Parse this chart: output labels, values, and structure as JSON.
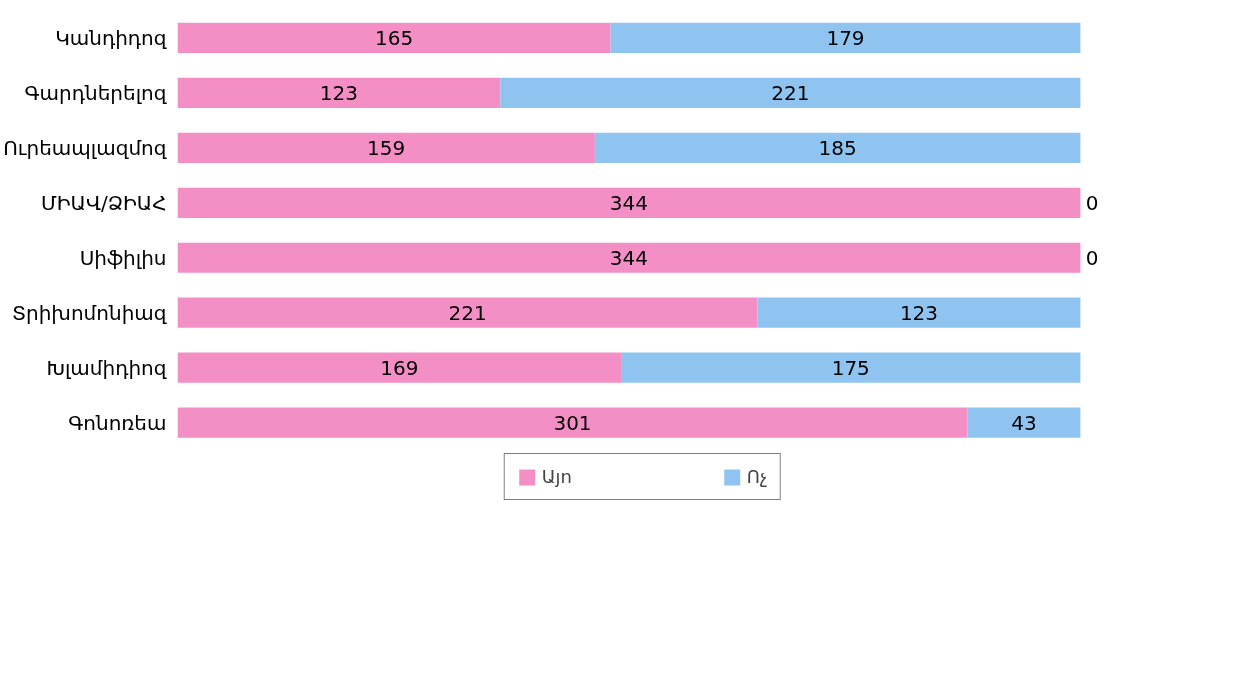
{
  "chart_data": {
    "type": "bar",
    "orientation": "horizontal",
    "stacked": true,
    "categories": [
      "Կանդիդոզ",
      "Գարդներելոզ",
      "Ուրեապլազմոզ",
      "ՄԻԱՎ/ՁԻԱՀ",
      "Սիֆիլիս",
      "Տրիխոմոնիազ",
      "Խլամիդիոզ",
      "Գոնոռեա"
    ],
    "series": [
      {
        "name": "Այո",
        "color": "#f48fc6",
        "values": [
          165,
          123,
          159,
          344,
          344,
          221,
          169,
          301
        ]
      },
      {
        "name": "Ոչ",
        "color": "#8fc4f0",
        "values": [
          179,
          221,
          185,
          0,
          0,
          123,
          175,
          43
        ]
      }
    ],
    "xlim": [
      0,
      344
    ],
    "data_labels": true,
    "legend": "bottom",
    "grid": false
  }
}
